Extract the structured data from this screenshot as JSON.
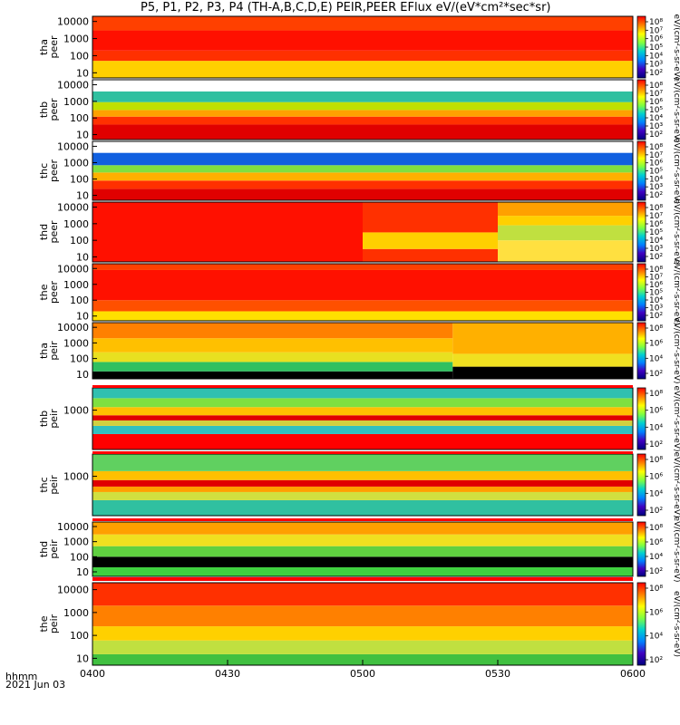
{
  "title": "P5, P1, P2, P3, P4 (TH-A,B,C,D,E) PEIR,PEER EFlux eV/(eV*cm²*sec*sr)",
  "footer": {
    "time_format_label": "hhmm",
    "date_label": "2021 Jun 03"
  },
  "colors": {
    "white_band": "#ffffff",
    "red_band": "#ff0000",
    "black_dropout": "#000000"
  },
  "chart_data": [
    {
      "type": "heatmap",
      "probe": "tha",
      "species": "peer",
      "ylabel_top": "tha",
      "ylabel_bottom": "peer",
      "yscale": "log",
      "yticks": [
        "10000",
        "1000",
        "100",
        "10"
      ],
      "colorbar_ticks": [
        "10⁸",
        "10⁷",
        "10⁶",
        "10⁵",
        "10⁴",
        "10³",
        "10²"
      ],
      "colorbar_label": "eV/(cm²-s-sr-eV)",
      "profile": [
        {
          "t": [
            0,
            120
          ],
          "bands": [
            [
              5,
              50,
              "#ffd000"
            ],
            [
              50,
              200,
              "#ff3000"
            ],
            [
              200,
              3000,
              "#ff1000"
            ],
            [
              3000,
              20000,
              "#ff4000"
            ]
          ]
        }
      ]
    },
    {
      "type": "heatmap",
      "probe": "thb",
      "species": "peer",
      "ylabel_top": "thb",
      "ylabel_bottom": "peer",
      "yscale": "log",
      "yticks": [
        "10000",
        "1000",
        "100",
        "10"
      ],
      "colorbar_ticks": [
        "10⁸",
        "10⁷",
        "10⁶",
        "10⁵",
        "10⁴",
        "10³",
        "10²"
      ],
      "colorbar_label": "eV/(cm²-s-sr-eV)",
      "profile": [
        {
          "t": [
            0,
            120
          ],
          "bands": [
            [
              5,
              40,
              "#e00000"
            ],
            [
              40,
              120,
              "#ff3000"
            ],
            [
              120,
              300,
              "#ffa000"
            ],
            [
              300,
              900,
              "#c0e000"
            ],
            [
              900,
              4000,
              "#30c0a0"
            ],
            [
              4000,
              20000,
              "#ffffff"
            ]
          ]
        }
      ]
    },
    {
      "type": "heatmap",
      "probe": "thc",
      "species": "peer",
      "ylabel_top": "thc",
      "ylabel_bottom": "peer",
      "yscale": "log",
      "yticks": [
        "10000",
        "1000",
        "100",
        "10"
      ],
      "colorbar_ticks": [
        "10⁸",
        "10⁷",
        "10⁶",
        "10⁵",
        "10⁴",
        "10³",
        "10²"
      ],
      "colorbar_label": "eV/(cm²-s-sr-eV)",
      "profile": [
        {
          "t": [
            0,
            120
          ],
          "bands": [
            [
              5,
              25,
              "#e00000"
            ],
            [
              25,
              80,
              "#ff3000"
            ],
            [
              80,
              250,
              "#ffb000"
            ],
            [
              250,
              700,
              "#80e040"
            ],
            [
              700,
              4000,
              "#1060e0"
            ],
            [
              4000,
              20000,
              "#ffffff"
            ]
          ]
        }
      ]
    },
    {
      "type": "heatmap",
      "probe": "thd",
      "species": "peer",
      "ylabel_top": "thd",
      "ylabel_bottom": "peer",
      "yscale": "log",
      "yticks": [
        "10000",
        "1000",
        "100",
        "10"
      ],
      "colorbar_ticks": [
        "10⁸",
        "10⁷",
        "10⁶",
        "10⁵",
        "10⁴",
        "10³",
        "10²"
      ],
      "colorbar_label": "eV/(cm²-s-sr-eV)",
      "profile": [
        {
          "t": [
            0,
            60
          ],
          "bands": [
            [
              5,
              20000,
              "#ff1000"
            ]
          ]
        },
        {
          "t": [
            60,
            90
          ],
          "bands": [
            [
              5,
              30,
              "#ff3000"
            ],
            [
              30,
              300,
              "#ffd000"
            ],
            [
              300,
              20000,
              "#ff3000"
            ]
          ]
        },
        {
          "t": [
            90,
            120
          ],
          "bands": [
            [
              5,
              100,
              "#ffe040"
            ],
            [
              100,
              800,
              "#c0e040"
            ],
            [
              800,
              3000,
              "#ffd000"
            ],
            [
              3000,
              20000,
              "#ffa000"
            ]
          ]
        }
      ]
    },
    {
      "type": "heatmap",
      "probe": "the",
      "species": "peer",
      "ylabel_top": "the",
      "ylabel_bottom": "peer",
      "yscale": "log",
      "yticks": [
        "10000",
        "1000",
        "100",
        "10"
      ],
      "colorbar_ticks": [
        "10⁸",
        "10⁷",
        "10⁶",
        "10⁵",
        "10⁴",
        "10³",
        "10²"
      ],
      "colorbar_label": "eV/(cm²-s-sr-eV)",
      "profile": [
        {
          "t": [
            0,
            120
          ],
          "bands": [
            [
              5,
              20,
              "#ffe000"
            ],
            [
              20,
              100,
              "#ff5000"
            ],
            [
              100,
              8000,
              "#ff1000"
            ],
            [
              8000,
              20000,
              "#ff4000"
            ]
          ]
        }
      ]
    },
    {
      "type": "heatmap",
      "probe": "tha",
      "species": "peir",
      "ylabel_top": "tha",
      "ylabel_bottom": "peir",
      "yscale": "log",
      "yticks": [
        "10000",
        "1000",
        "100",
        "10"
      ],
      "colorbar_ticks": [
        "10⁸",
        "10⁶",
        "10⁴",
        "10²"
      ],
      "colorbar_label": "eV/(cm²-s-sr-eV)",
      "profile": [
        {
          "t": [
            0,
            80
          ],
          "bands": [
            [
              5,
              15,
              "#000000"
            ],
            [
              15,
              60,
              "#30c060"
            ],
            [
              60,
              250,
              "#e8e020"
            ],
            [
              250,
              2000,
              "#ffc000"
            ],
            [
              2000,
              20000,
              "#ff8000"
            ]
          ]
        },
        {
          "t": [
            80,
            120
          ],
          "bands": [
            [
              5,
              30,
              "#000000"
            ],
            [
              30,
              200,
              "#f0e020"
            ],
            [
              200,
              20000,
              "#ffb000"
            ]
          ]
        }
      ]
    },
    {
      "type": "heatmap",
      "probe": "thb",
      "species": "peir",
      "ylabel_top": "thb",
      "ylabel_bottom": "peir",
      "yscale": "log",
      "yticks": [
        "1000"
      ],
      "colorbar_ticks": [
        "10⁸",
        "10⁶",
        "10⁴",
        "10²"
      ],
      "colorbar_label": "eV/(cm²-s-sr-eV)",
      "profile": [
        {
          "t": [
            0,
            120
          ],
          "bands": [
            [
              5,
              40,
              "#ff0000"
            ],
            [
              40,
              120,
              "#30c0c0"
            ],
            [
              120,
              250,
              "#d0d040"
            ],
            [
              250,
              500,
              "#e00000"
            ],
            [
              500,
              1500,
              "#ffc000"
            ],
            [
              1500,
              5000,
              "#80e040"
            ],
            [
              5000,
              20000,
              "#30c0b0"
            ]
          ]
        }
      ]
    },
    {
      "type": "heatmap",
      "probe": "thc",
      "species": "peir",
      "ylabel_top": "thc",
      "ylabel_bottom": "peir",
      "yscale": "log",
      "yticks": [
        "1000"
      ],
      "colorbar_ticks": [
        "10⁸",
        "10⁶",
        "10⁴",
        "10²"
      ],
      "colorbar_label": "eV/(cm²-s-sr-eV)",
      "profile": [
        {
          "t": [
            0,
            120
          ],
          "bands": [
            [
              5,
              40,
              "#30c0a0"
            ],
            [
              40,
              120,
              "#d0e040"
            ],
            [
              120,
              250,
              "#ffa000"
            ],
            [
              250,
              600,
              "#e00000"
            ],
            [
              600,
              2000,
              "#ffc000"
            ],
            [
              2000,
              20000,
              "#60d060"
            ]
          ]
        }
      ]
    },
    {
      "type": "heatmap",
      "probe": "thd",
      "species": "peir",
      "ylabel_top": "thd",
      "ylabel_bottom": "peir",
      "yscale": "log",
      "yticks": [
        "10000",
        "1000",
        "100",
        "10"
      ],
      "colorbar_ticks": [
        "10⁸",
        "10⁶",
        "10⁴",
        "10²"
      ],
      "colorbar_label": "eV/(cm²-s-sr-eV)",
      "profile": [
        {
          "t": [
            0,
            120
          ],
          "bands": [
            [
              5,
              20,
              "#40d040"
            ],
            [
              20,
              100,
              "#000000"
            ],
            [
              100,
              500,
              "#60d040"
            ],
            [
              500,
              3000,
              "#f0e020"
            ],
            [
              3000,
              20000,
              "#ffa000"
            ]
          ]
        }
      ]
    },
    {
      "type": "heatmap",
      "probe": "the",
      "species": "peir",
      "ylabel_top": "the",
      "ylabel_bottom": "peir",
      "yscale": "log",
      "yticks": [
        "10000",
        "1000",
        "100",
        "10"
      ],
      "colorbar_ticks": [
        "10⁸",
        "10⁶",
        "10⁴",
        "10²"
      ],
      "colorbar_label": "eV/(cm²-s-sr-eV)",
      "profile": [
        {
          "t": [
            0,
            120
          ],
          "bands": [
            [
              5,
              15,
              "#40c040"
            ],
            [
              15,
              60,
              "#c0e040"
            ],
            [
              60,
              250,
              "#ffd000"
            ],
            [
              250,
              2000,
              "#ff8000"
            ],
            [
              2000,
              20000,
              "#ff3000"
            ]
          ]
        }
      ]
    }
  ],
  "xaxis": {
    "tick_labels": [
      "0400",
      "0430",
      "0500",
      "0530",
      "0600"
    ],
    "tick_minutes": [
      0,
      30,
      60,
      90,
      120
    ],
    "range_minutes": [
      0,
      120
    ]
  }
}
